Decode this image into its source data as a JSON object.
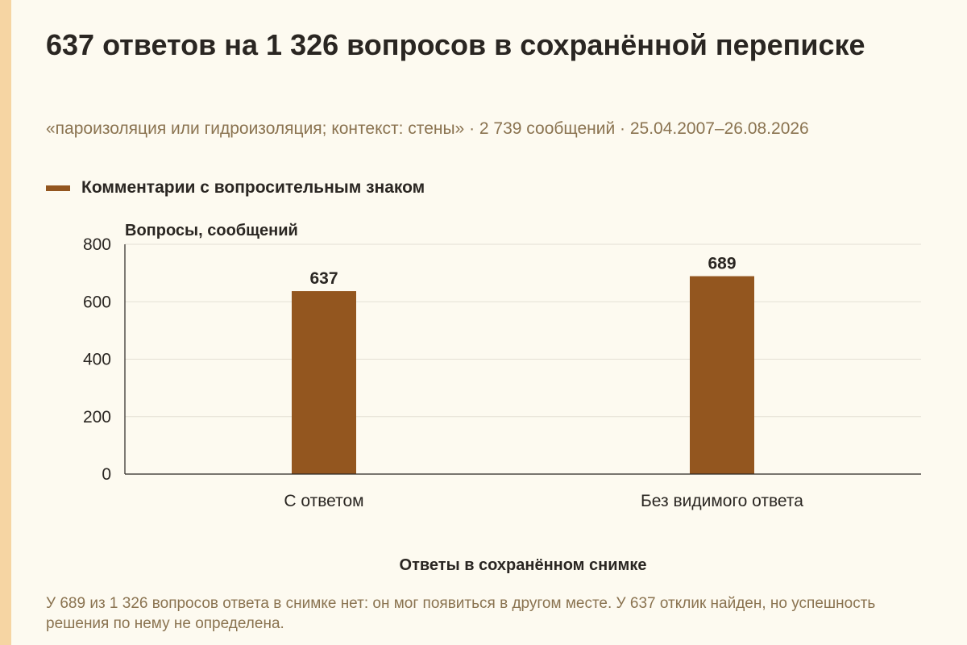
{
  "page": {
    "title": "637 ответов на 1 326 вопросов в сохранённой переписке",
    "subtitle": "«пароизоляция или гидроизоляция; контекст: стены» · 2 739 сообщений · 25.04.2007–26.08.2026",
    "footnote": "У 689 из 1 326 вопросов ответа в снимке нет: он мог появиться в другом месте. У 637 отклик найден, но успешность решения по нему не определена."
  },
  "colors": {
    "bar": "#93561f",
    "accent_stripe": "#f6d5a3",
    "background": "#fdfaf0"
  },
  "chart_data": {
    "type": "bar",
    "categories": [
      "С ответом",
      "Без видимого ответа"
    ],
    "series": [
      {
        "name": "Комментарии с вопросительным знаком",
        "values": [
          637,
          689
        ]
      }
    ],
    "ylabel": "Вопросы, сообщений",
    "xlabel": "Ответы в сохранённом снимке",
    "ylim": [
      0,
      800
    ],
    "yticks": [
      0,
      200,
      400,
      600,
      800
    ],
    "grid": true,
    "legend_position": "top-left",
    "data_labels": true
  }
}
